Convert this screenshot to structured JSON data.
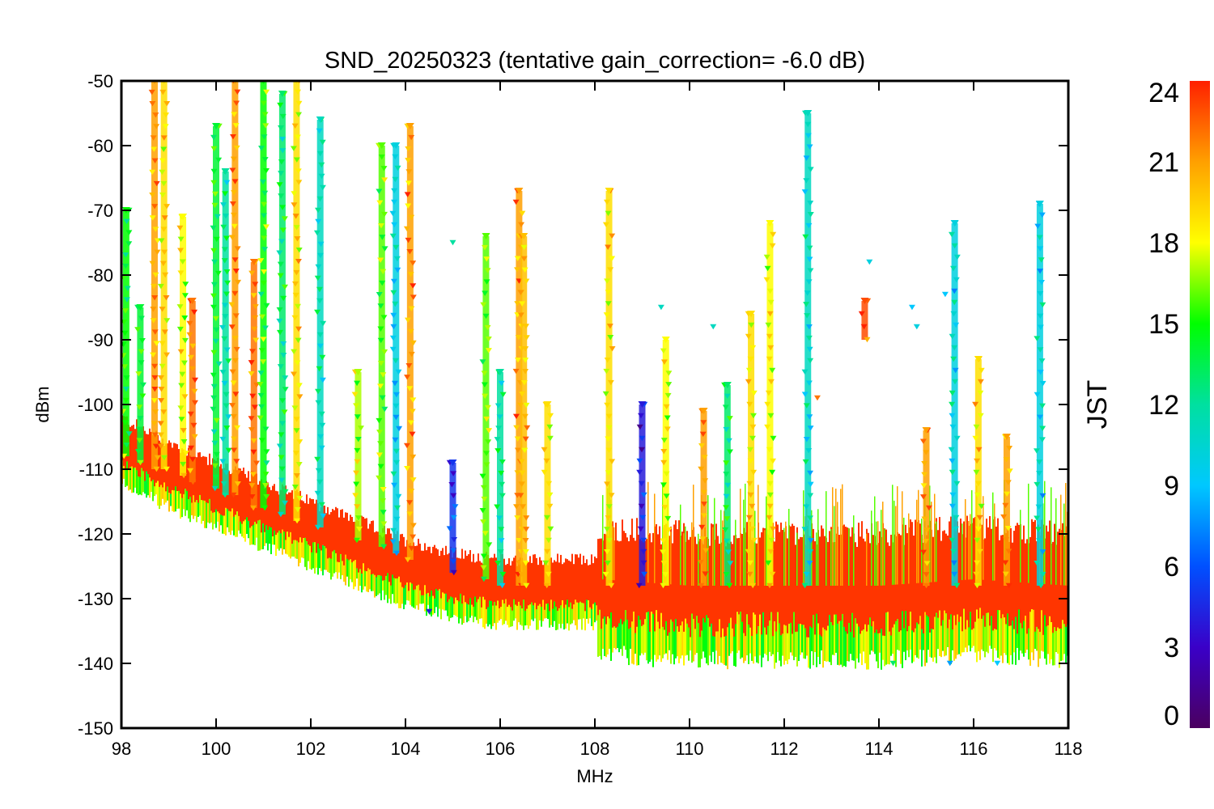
{
  "chart_data": {
    "type": "scatter",
    "title": "SND_20250323 (tentative gain_correction= -6.0 dB)",
    "xlabel": "MHz",
    "ylabel": "dBm",
    "xlim": [
      98,
      118
    ],
    "ylim": [
      -150,
      -50
    ],
    "x_ticks": [
      98,
      100,
      102,
      104,
      106,
      108,
      110,
      112,
      114,
      116,
      118
    ],
    "x_tick_labels": [
      "98",
      "100",
      "102",
      "104",
      "106",
      "108",
      "110",
      "112",
      "114",
      "116",
      "118"
    ],
    "y_ticks": [
      -50,
      -60,
      -70,
      -80,
      -90,
      -100,
      -110,
      -120,
      -130,
      -140,
      -150
    ],
    "y_tick_labels": [
      "-50",
      "-60",
      "-70",
      "-80",
      "-90",
      "-100",
      "-110",
      "-120",
      "-130",
      "-140",
      "-150"
    ],
    "grid": false,
    "marker": "triangle-down",
    "color_by": "JST",
    "colorbar": {
      "label": "JST",
      "range": [
        0,
        24
      ],
      "ticks": [
        0,
        3,
        6,
        9,
        12,
        15,
        18,
        21,
        24
      ],
      "tick_labels": [
        "0",
        "3",
        "6",
        "9",
        "12",
        "15",
        "18",
        "21",
        "24"
      ],
      "colormap": "rainbow",
      "position": "right"
    },
    "noise_floor": {
      "x": [
        98,
        99,
        100,
        101,
        102,
        103,
        104,
        105,
        106,
        107,
        108,
        108.1,
        110,
        112,
        114,
        116,
        118
      ],
      "y": [
        -106,
        -110,
        -113,
        -116,
        -119,
        -122,
        -125,
        -127,
        -128,
        -128,
        -128,
        -127,
        -128,
        -128,
        -128,
        -127,
        -128
      ]
    },
    "peaks": [
      {
        "x": 98.1,
        "peak": -70,
        "base": -108,
        "jst": 15
      },
      {
        "x": 98.4,
        "peak": -85,
        "base": -109,
        "jst": 14
      },
      {
        "x": 98.7,
        "peak": -50,
        "base": -110,
        "jst": 21
      },
      {
        "x": 98.9,
        "peak": -50,
        "base": -110,
        "jst": 19
      },
      {
        "x": 99.3,
        "peak": -71,
        "base": -111,
        "jst": 18
      },
      {
        "x": 99.5,
        "peak": -84,
        "base": -112,
        "jst": 22
      },
      {
        "x": 100.0,
        "peak": -57,
        "base": -113,
        "jst": 14
      },
      {
        "x": 100.2,
        "peak": -64,
        "base": -114,
        "jst": 12
      },
      {
        "x": 100.4,
        "peak": -50,
        "base": -114,
        "jst": 21
      },
      {
        "x": 100.8,
        "peak": -78,
        "base": -116,
        "jst": 22
      },
      {
        "x": 101.0,
        "peak": -50,
        "base": -116,
        "jst": 15
      },
      {
        "x": 101.4,
        "peak": -52,
        "base": -117,
        "jst": 13
      },
      {
        "x": 101.7,
        "peak": -50,
        "base": -118,
        "jst": 19
      },
      {
        "x": 102.2,
        "peak": -56,
        "base": -119,
        "jst": 11
      },
      {
        "x": 103.0,
        "peak": -95,
        "base": -121,
        "jst": 17
      },
      {
        "x": 103.5,
        "peak": -60,
        "base": -122,
        "jst": 16
      },
      {
        "x": 103.8,
        "peak": -60,
        "base": -123,
        "jst": 10
      },
      {
        "x": 104.1,
        "peak": -57,
        "base": -124,
        "jst": 21
      },
      {
        "x": 105.0,
        "peak": -109,
        "base": -126,
        "jst": 5
      },
      {
        "x": 105.7,
        "peak": -74,
        "base": -127,
        "jst": 16
      },
      {
        "x": 106.0,
        "peak": -95,
        "base": -128,
        "jst": 12
      },
      {
        "x": 106.4,
        "peak": -67,
        "base": -128,
        "jst": 21
      },
      {
        "x": 106.5,
        "peak": -74,
        "base": -128,
        "jst": 20
      },
      {
        "x": 107.0,
        "peak": -100,
        "base": -128,
        "jst": 19
      },
      {
        "x": 108.3,
        "peak": -67,
        "base": -128,
        "jst": 19
      },
      {
        "x": 109.0,
        "peak": -100,
        "base": -128,
        "jst": 4
      },
      {
        "x": 109.5,
        "peak": -90,
        "base": -128,
        "jst": 18
      },
      {
        "x": 110.3,
        "peak": -101,
        "base": -128,
        "jst": 21
      },
      {
        "x": 110.8,
        "peak": -97,
        "base": -128,
        "jst": 13
      },
      {
        "x": 111.3,
        "peak": -86,
        "base": -128,
        "jst": 19
      },
      {
        "x": 111.7,
        "peak": -72,
        "base": -128,
        "jst": 18
      },
      {
        "x": 112.5,
        "peak": -55,
        "base": -128,
        "jst": 11
      },
      {
        "x": 113.7,
        "peak": -84,
        "base": -90,
        "jst": 23
      },
      {
        "x": 115.0,
        "peak": -104,
        "base": -128,
        "jst": 21
      },
      {
        "x": 115.6,
        "peak": -72,
        "base": -128,
        "jst": 10
      },
      {
        "x": 116.1,
        "peak": -93,
        "base": -128,
        "jst": 19
      },
      {
        "x": 116.7,
        "peak": -105,
        "base": -128,
        "jst": 21
      },
      {
        "x": 117.4,
        "peak": -69,
        "base": -128,
        "jst": 10
      }
    ],
    "scattered_points": [
      {
        "x": 105.0,
        "y": -75,
        "jst": 12
      },
      {
        "x": 109.4,
        "y": -85,
        "jst": 11
      },
      {
        "x": 110.5,
        "y": -88,
        "jst": 11
      },
      {
        "x": 113.8,
        "y": -78,
        "jst": 10
      },
      {
        "x": 114.8,
        "y": -88,
        "jst": 10
      },
      {
        "x": 115.4,
        "y": -83,
        "jst": 9
      },
      {
        "x": 114.7,
        "y": -85,
        "jst": 9
      },
      {
        "x": 115.5,
        "y": -140,
        "jst": 8
      },
      {
        "x": 116.5,
        "y": -140,
        "jst": 9
      },
      {
        "x": 114.3,
        "y": -140,
        "jst": 13
      },
      {
        "x": 104.5,
        "y": -132,
        "jst": 4
      },
      {
        "x": 112.7,
        "y": -99,
        "jst": 22
      }
    ]
  }
}
